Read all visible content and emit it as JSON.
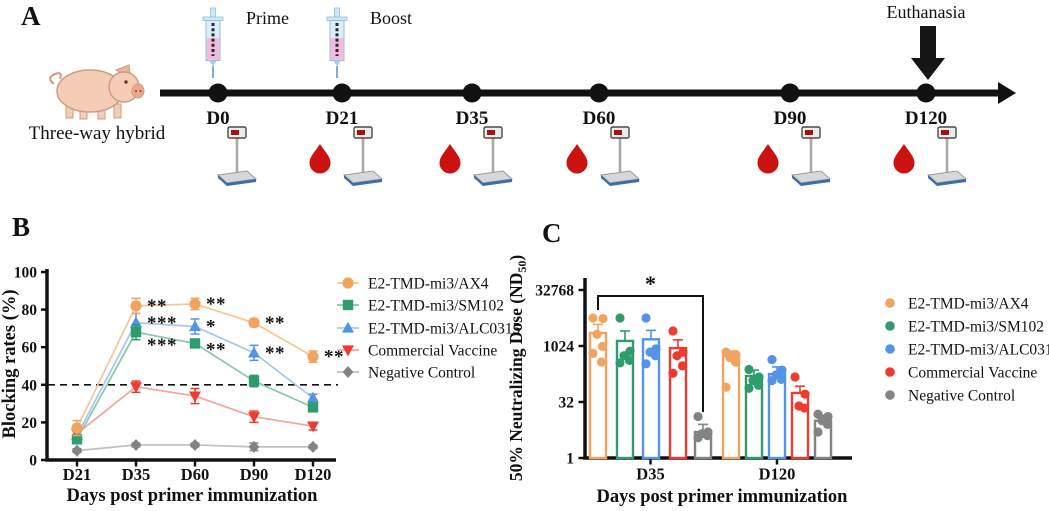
{
  "panelA": {
    "label": "A",
    "animal": "pig",
    "animal_caption": "Three-way hybrid",
    "events": {
      "prime": "Prime",
      "boost": "Boost",
      "euthanasia": "Euthanasia"
    },
    "icons": {
      "animal": "pig-icon",
      "injection": "syringe-icon",
      "blood_sampling": "blood-drop-icon",
      "weighing": "weighing-scale-icon",
      "euthanasia": "down-arrow-icon"
    },
    "timepoints": [
      {
        "day": "D0",
        "injection": "Prime",
        "weighing": true,
        "blood_sampling": false
      },
      {
        "day": "D21",
        "injection": "Boost",
        "weighing": true,
        "blood_sampling": true
      },
      {
        "day": "D35",
        "weighing": true,
        "blood_sampling": true
      },
      {
        "day": "D60",
        "weighing": true,
        "blood_sampling": true
      },
      {
        "day": "D90",
        "weighing": true,
        "blood_sampling": true
      },
      {
        "day": "D120",
        "euthanasia": true,
        "weighing": true,
        "blood_sampling": true
      }
    ]
  },
  "colors": {
    "orange": "#F0A45F",
    "green": "#2E9C6D",
    "blue": "#5593E6",
    "red": "#EF3A31",
    "gray": "#838383",
    "blood_red": "#CB1210",
    "axis_black": "#111111"
  },
  "chart_data": [
    {
      "panel": "B",
      "type": "line",
      "xlabel": "Days post primer immunization",
      "ylabel": "Blocking rates (%)",
      "categories": [
        "D21",
        "D35",
        "D60",
        "D90",
        "D120"
      ],
      "ylim": [
        0,
        100
      ],
      "yticks": [
        0,
        20,
        40,
        60,
        80,
        100
      ],
      "reference_line_y": 40,
      "legend_position": "right",
      "series": [
        {
          "name": "E2-TMD-mi3/AX4",
          "marker": "circle",
          "color": "#F0A45F",
          "line_color": "#F6C695",
          "values": [
            17,
            82,
            83,
            73,
            55
          ],
          "errors": [
            4,
            4,
            3,
            2,
            3
          ]
        },
        {
          "name": "E2-TMD-mi3/SM102",
          "marker": "square",
          "color": "#2E9C6D",
          "line_color": "#85C8AB",
          "values": [
            11,
            68,
            62,
            42,
            28
          ],
          "errors": [
            2,
            4,
            2,
            3,
            2
          ]
        },
        {
          "name": "E2-TMD-mi3/ALC0315",
          "marker": "triangle-up",
          "color": "#5593E6",
          "line_color": "#A6C6F0",
          "values": [
            13,
            73,
            71,
            57,
            33
          ],
          "errors": [
            2,
            5,
            4,
            4,
            2
          ]
        },
        {
          "name": "Commercial Vaccine",
          "marker": "triangle-down",
          "color": "#EF3A31",
          "line_color": "#F7A29B",
          "values": [
            14,
            39,
            34,
            23,
            18
          ],
          "errors": [
            2,
            3,
            4,
            3,
            2
          ]
        },
        {
          "name": "Negative Control",
          "marker": "diamond",
          "color": "#838383",
          "line_color": "#C0C0C0",
          "values": [
            5,
            8,
            8,
            7,
            7
          ],
          "errors": [
            1,
            1,
            1,
            2,
            1
          ]
        }
      ],
      "significance": [
        {
          "series": "E2-TMD-mi3/AX4",
          "category": "D35",
          "label": "**"
        },
        {
          "series": "E2-TMD-mi3/AX4",
          "category": "D60",
          "label": "**"
        },
        {
          "series": "E2-TMD-mi3/AX4",
          "category": "D90",
          "label": "**"
        },
        {
          "series": "E2-TMD-mi3/AX4",
          "category": "D120",
          "label": "**"
        },
        {
          "series": "E2-TMD-mi3/ALC0315",
          "category": "D35",
          "label": "***"
        },
        {
          "series": "E2-TMD-mi3/ALC0315",
          "category": "D60",
          "label": "*"
        },
        {
          "series": "E2-TMD-mi3/ALC0315",
          "category": "D90",
          "label": "**"
        },
        {
          "series": "E2-TMD-mi3/SM102",
          "category": "D35",
          "label": "***",
          "dy": 13
        },
        {
          "series": "E2-TMD-mi3/SM102",
          "category": "D60",
          "label": "**",
          "dy": 6
        }
      ]
    },
    {
      "panel": "C",
      "type": "bar",
      "scale": "log",
      "log_base": 32,
      "xlabel": "Days post primer immunization",
      "ylabel_main": "50% Neutralizing Dose (ND",
      "ylabel_sub": "50",
      "ylabel_close": ")",
      "yticks": [
        1,
        32,
        1024,
        32768
      ],
      "groups": [
        "D35",
        "D120"
      ],
      "series": [
        {
          "name": "E2-TMD-mi3/AX4",
          "color": "#F0A45F",
          "means": [
            2300,
            550
          ],
          "err_hi": [
            3900,
            750
          ],
          "points": [
            [
              5800,
              5600,
              2100,
              1000,
              650,
              380
            ],
            [
              700,
              600,
              500,
              380,
              80
            ]
          ]
        },
        {
          "name": "E2-TMD-mi3/SM102",
          "color": "#2E9C6D",
          "means": [
            1400,
            160
          ],
          "err_hi": [
            2600,
            230
          ],
          "points": [
            [
              5800,
              740,
              560,
              420,
              360
            ],
            [
              240,
              150,
              120,
              90,
              75
            ]
          ]
        },
        {
          "name": "E2-TMD-mi3/ALC0315",
          "color": "#5593E6",
          "means": [
            1550,
            180
          ],
          "err_hi": [
            2700,
            280
          ],
          "points": [
            [
              5800,
              860,
              700,
              560,
              340
            ],
            [
              440,
              230,
              170,
              130,
              120
            ]
          ]
        },
        {
          "name": "Commercial Vaccine",
          "color": "#EF3A31",
          "means": [
            900,
            56
          ],
          "err_hi": [
            1500,
            85
          ],
          "points": [
            [
              2600,
              700,
              560,
              300,
              190
            ],
            [
              150,
              52,
              25,
              22
            ]
          ]
        },
        {
          "name": "Negative Control",
          "color": "#838383",
          "means": [
            5,
            10
          ],
          "err_hi": [
            8,
            14
          ],
          "points": [
            [
              13,
              5,
              4.5,
              4,
              3.5
            ],
            [
              15,
              13,
              10,
              8,
              5
            ]
          ]
        }
      ],
      "significance": [
        {
          "label": "*",
          "group": "D35",
          "from_series": "E2-TMD-mi3/AX4",
          "to_series": "Negative Control"
        }
      ]
    }
  ]
}
